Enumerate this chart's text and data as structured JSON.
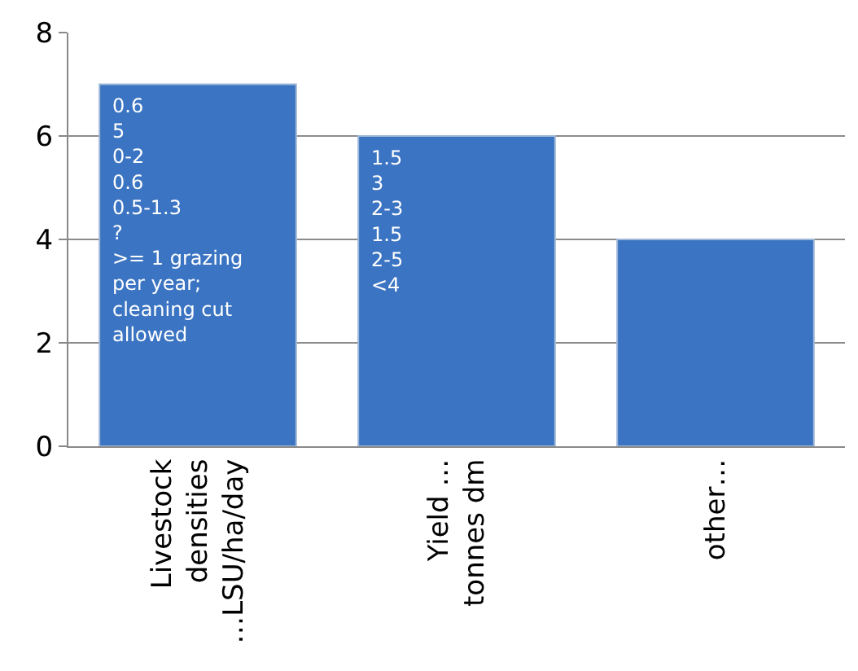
{
  "chart_data": {
    "type": "bar",
    "categories": [
      "Livestock densities …LSU/ha/day",
      "Yield … tonnes dm",
      "other…"
    ],
    "values": [
      7,
      6,
      4
    ],
    "color": "#3b74c2",
    "annotations": [
      "0.6\n5\n0-2\n0.6\n0.5-1.3\n?\n>= 1 grazing\nper year;\ncleaning cut\nallowed",
      "1.5\n3\n2-3\n1.5\n2-5\n<4"
    ],
    "ylim": [
      0,
      8
    ],
    "yticks": [
      0,
      2,
      4,
      6,
      8
    ],
    "grid": "y"
  }
}
